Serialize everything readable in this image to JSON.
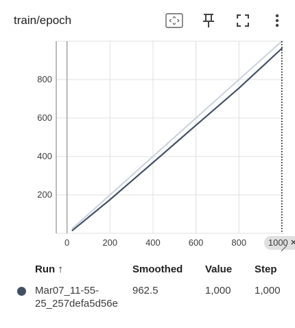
{
  "card": {
    "title": "train/epoch",
    "icons": [
      "fit-domain-icon",
      "pin-icon",
      "fullscreen-icon",
      "more-vert-icon"
    ]
  },
  "chart_data": {
    "type": "line",
    "title": "",
    "xlabel": "",
    "ylabel": "",
    "xlim": [
      -50,
      1010
    ],
    "ylim": [
      0,
      1000
    ],
    "x_ticks": [
      0,
      200,
      400,
      600,
      800
    ],
    "y_ticks": [
      0,
      200,
      400,
      600,
      800,
      1000
    ],
    "x_tick_labels": [
      "0",
      "200",
      "400",
      "600",
      "800"
    ],
    "y_tick_labels": [
      "200",
      "400",
      "600",
      "800"
    ],
    "hover_x": 1000,
    "hover_label": "1000",
    "grid": true,
    "colors": {
      "smoothed": "#425066",
      "raw": "#c9d1dc",
      "grid": "#e0e0e0",
      "axis": "#9e9e9e"
    },
    "series": [
      {
        "role": "raw",
        "x": [
          25,
          1000
        ],
        "y": [
          25,
          1000
        ]
      },
      {
        "role": "smoothed",
        "x": [
          25,
          200,
          400,
          600,
          800,
          1000
        ],
        "y": [
          15,
          175,
          368,
          562,
          755,
          962.5
        ]
      }
    ]
  },
  "table": {
    "headers": {
      "run": "Run ↑",
      "smoothed": "Smoothed",
      "value": "Value",
      "step": "Step"
    },
    "rows": [
      {
        "run_line1": "Mar07_11-55-",
        "run_line2": "25_257defa5d56e",
        "smoothed": "962.5",
        "value": "1,000",
        "step": "1,000",
        "color": "#425066"
      }
    ]
  }
}
